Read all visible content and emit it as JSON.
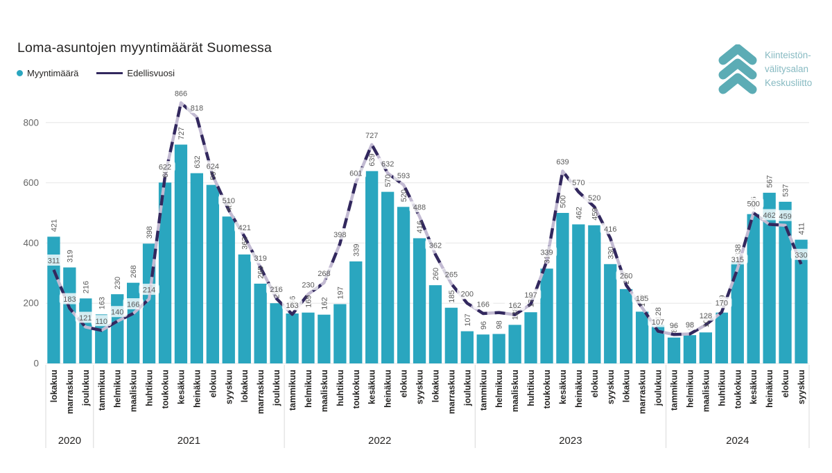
{
  "title": "Loma-asuntojen myyntimäärät Suomessa",
  "legend": {
    "items": [
      {
        "label": "Myyntimäärä"
      },
      {
        "label": "Edellisvuosi"
      }
    ]
  },
  "logo": {
    "line1": "Kiinteistön-",
    "line2": "välitysalan",
    "line3": "Keskusliitto"
  },
  "colors": {
    "bar": "#2AA6BF",
    "line_dark": "#32285E",
    "line_light": "#C2BAD2",
    "data_label": "#595959",
    "axis_label": "#666666",
    "category_label": "#252423",
    "grid": "#E6E6E6",
    "separator": "#D8D8D8",
    "label_pill": "rgba(255,255,255,0.8)",
    "logo_teal": "#5CACB5",
    "logo_text": "#87BAC2"
  },
  "chart_data": {
    "type": "bar",
    "subtype": "combo-bar-line",
    "title": "Loma-asuntojen myyntimäärät Suomessa",
    "xlabel": "",
    "ylabel": "",
    "ylim": [
      0,
      900
    ],
    "y_ticks": [
      0,
      200,
      400,
      600,
      800
    ],
    "grid": true,
    "legend_position": "top-left",
    "categories": [
      "lokakuu",
      "marraskuu",
      "joulukuu",
      "tammikuu",
      "helmikuu",
      "maaliskuu",
      "huhtikuu",
      "toukokuu",
      "kesäkuu",
      "heinäkuu",
      "elokuu",
      "syyskuu",
      "lokakuu",
      "marraskuu",
      "joulukuu",
      "tammikuu",
      "helmikuu",
      "maaliskuu",
      "huhtikuu",
      "toukokuu",
      "kesäkuu",
      "heinäkuu",
      "elokuu",
      "syyskuu",
      "lokakuu",
      "marraskuu",
      "joulukuu",
      "tammikuu",
      "helmikuu",
      "maaliskuu",
      "huhtikuu",
      "toukokuu",
      "kesäkuu",
      "heinäkuu",
      "elokuu",
      "syyskuu",
      "lokakuu",
      "marraskuu",
      "joulukuu",
      "tammikuu",
      "helmikuu",
      "maaliskuu",
      "huhtikuu",
      "toukokuu",
      "kesäkuu",
      "heinäkuu",
      "elokuu",
      "syyskuu"
    ],
    "year_groups": [
      {
        "label": "2020",
        "start": 0,
        "count": 3
      },
      {
        "label": "2021",
        "start": 3,
        "count": 12
      },
      {
        "label": "2022",
        "start": 15,
        "count": 12
      },
      {
        "label": "2023",
        "start": 27,
        "count": 12
      },
      {
        "label": "2024",
        "start": 39,
        "count": 9
      }
    ],
    "series": [
      {
        "name": "Myyntimäärä",
        "type": "bar",
        "values": [
          421,
          319,
          216,
          163,
          230,
          268,
          398,
          601,
          727,
          632,
          593,
          488,
          362,
          265,
          200,
          166,
          169,
          162,
          197,
          339,
          639,
          570,
          520,
          416,
          260,
          185,
          107,
          96,
          98,
          128,
          170,
          315,
          500,
          462,
          459,
          330,
          247,
          172,
          128,
          86,
          94,
          103,
          169,
          338,
          496,
          567,
          537,
          411
        ]
      },
      {
        "name": "Edellisvuosi",
        "type": "line",
        "values": [
          311,
          183,
          121,
          110,
          140,
          166,
          214,
          622,
          866,
          818,
          624,
          510,
          421,
          319,
          216,
          163,
          230,
          268,
          398,
          601,
          727,
          632,
          593,
          488,
          362,
          265,
          200,
          166,
          169,
          162,
          197,
          339,
          639,
          570,
          520,
          416,
          260,
          185,
          107,
          96,
          98,
          128,
          170,
          315,
          500,
          462,
          459,
          330
        ]
      }
    ],
    "hidden_line_labels": [
      28
    ]
  }
}
